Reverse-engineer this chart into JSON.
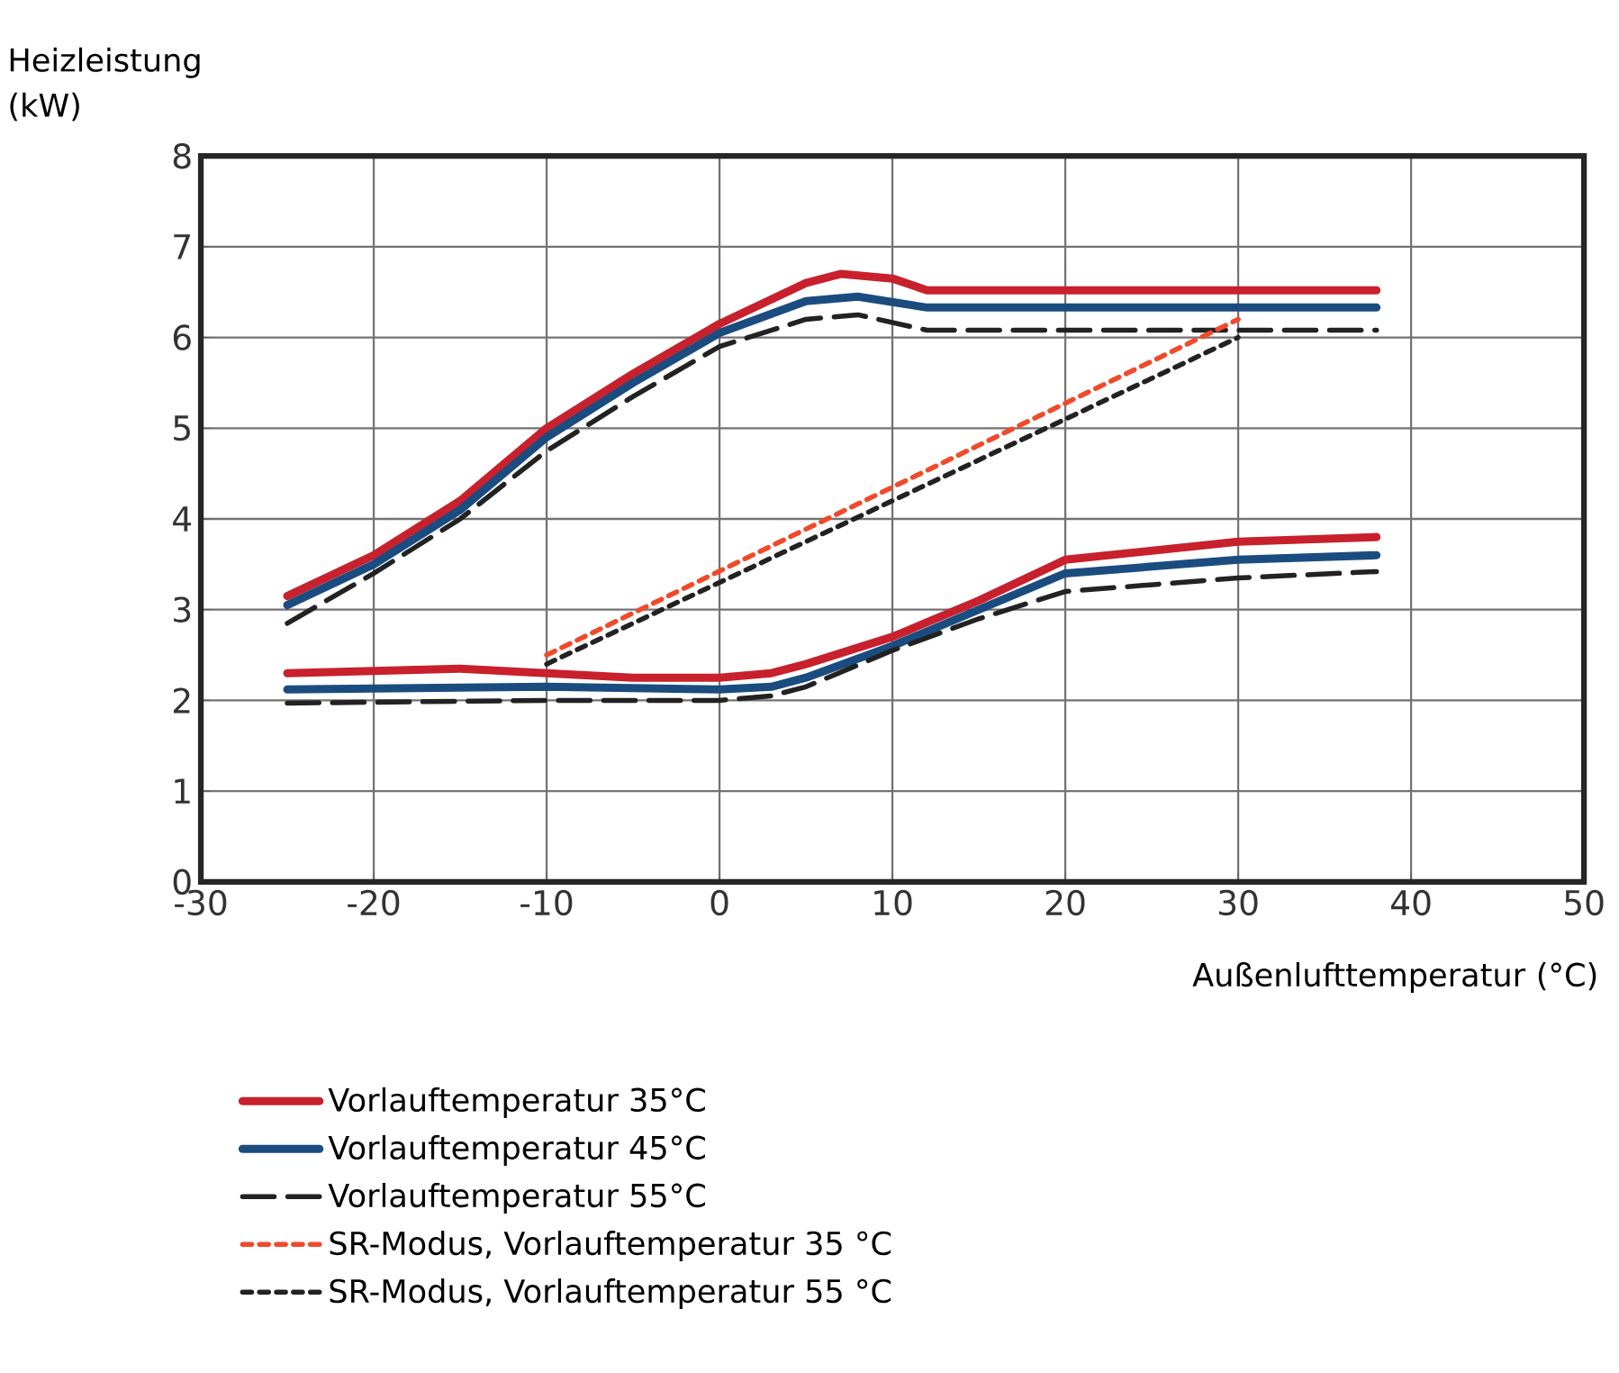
{
  "chart_data": {
    "type": "line",
    "xlabel": "Außenlufttemperatur (°C)",
    "ylabel": "Heizleistung (kW)",
    "xlim": [
      -30,
      50
    ],
    "xticks": [
      -30,
      -20,
      -10,
      0,
      10,
      20,
      30,
      40,
      50
    ],
    "ylim": [
      0,
      8
    ],
    "yticks": [
      0,
      1,
      2,
      3,
      4,
      5,
      6,
      7,
      8
    ],
    "grid": true,
    "legend": "bottom",
    "marker": "none",
    "series": [
      {
        "name": "Vorlauftemperatur 35°C",
        "color": "#c8202c",
        "line_style": "solid",
        "x": [
          -25,
          -20,
          -15,
          -10,
          -5,
          0,
          5,
          7,
          10,
          12,
          20,
          30,
          38
        ],
        "values": [
          3.15,
          3.6,
          4.2,
          5.0,
          5.6,
          6.15,
          6.6,
          6.7,
          6.65,
          6.52,
          6.52,
          6.52,
          6.52
        ]
      },
      {
        "name": "Vorlauftemperatur 45°C",
        "color": "#1b4c80",
        "line_style": "solid",
        "x": [
          -25,
          -20,
          -15,
          -10,
          -5,
          0,
          5,
          8,
          12,
          20,
          30,
          38
        ],
        "values": [
          3.05,
          3.5,
          4.1,
          4.9,
          5.5,
          6.05,
          6.4,
          6.45,
          6.33,
          6.33,
          6.33,
          6.33
        ]
      },
      {
        "name": "Vorlauftemperatur 55°C",
        "color": "#222222",
        "line_style": "dashed",
        "x": [
          -25,
          -20,
          -15,
          -10,
          -5,
          0,
          5,
          8,
          12,
          20,
          30,
          38
        ],
        "values": [
          2.85,
          3.4,
          4.0,
          4.75,
          5.35,
          5.9,
          6.2,
          6.25,
          6.08,
          6.08,
          6.08,
          6.08
        ]
      },
      {
        "color": "#c8202c",
        "line_style": "solid",
        "x": [
          -25,
          -15,
          -10,
          -5,
          0,
          3,
          5,
          10,
          15,
          20,
          30,
          38
        ],
        "values": [
          2.3,
          2.35,
          2.3,
          2.25,
          2.25,
          2.3,
          2.4,
          2.7,
          3.1,
          3.55,
          3.75,
          3.8
        ]
      },
      {
        "color": "#1b4c80",
        "line_style": "solid",
        "x": [
          -25,
          -10,
          0,
          3,
          5,
          10,
          15,
          20,
          30,
          38
        ],
        "values": [
          2.12,
          2.15,
          2.12,
          2.15,
          2.25,
          2.6,
          3.0,
          3.4,
          3.55,
          3.6
        ]
      },
      {
        "color": "#222222",
        "line_style": "dashed",
        "x": [
          -25,
          -10,
          0,
          3,
          5,
          10,
          15,
          20,
          30,
          38
        ],
        "values": [
          1.97,
          2.0,
          2.0,
          2.05,
          2.15,
          2.55,
          2.9,
          3.2,
          3.35,
          3.42
        ]
      },
      {
        "name": "SR-Modus, Vorlauftemperatur 35 °C",
        "color": "#f04a2a",
        "line_style": "dotted",
        "x": [
          -10,
          30
        ],
        "values": [
          2.5,
          6.2
        ]
      },
      {
        "name": "SR-Modus, Vorlauftemperatur 55 °C",
        "color": "#222222",
        "line_style": "dotted",
        "x": [
          -10,
          30
        ],
        "values": [
          2.4,
          6.0
        ]
      }
    ]
  }
}
